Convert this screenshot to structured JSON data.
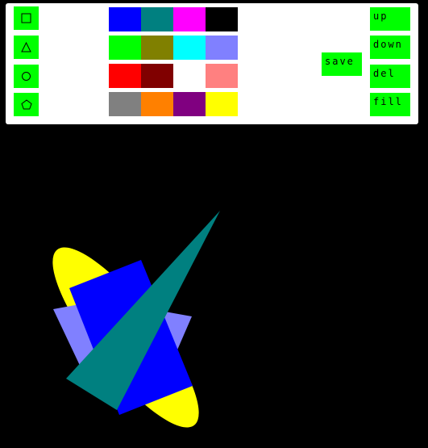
{
  "tools": [
    {
      "name": "rectangle-tool",
      "icon": "square-icon"
    },
    {
      "name": "triangle-tool",
      "icon": "triangle-icon"
    },
    {
      "name": "ellipse-tool",
      "icon": "circle-icon"
    },
    {
      "name": "pentagon-tool",
      "icon": "pentagon-icon"
    }
  ],
  "palette": [
    [
      "#0000ff",
      "#008080",
      "#ff00ff",
      "#000000"
    ],
    [
      "#00ff00",
      "#808000",
      "#00ffff",
      "#8080ff"
    ],
    [
      "#ff0000",
      "#800000",
      "#ffffff",
      "#ff8080"
    ],
    [
      "#808080",
      "#ff8000",
      "#800080",
      "#ffff00"
    ]
  ],
  "actions": {
    "save_label": "save",
    "up_label": "up",
    "down_label": "down",
    "del_label": "del",
    "fill_label": "fill"
  },
  "canvas_shapes": [
    {
      "type": "ellipse",
      "color": "#ffff00",
      "label": "yellow-ellipse"
    },
    {
      "type": "pentagon",
      "color": "#8080ff",
      "label": "lavender-pentagon"
    },
    {
      "type": "rectangle",
      "color": "#0000ff",
      "label": "blue-rectangle"
    },
    {
      "type": "triangle",
      "color": "#008080",
      "label": "teal-triangle"
    }
  ]
}
